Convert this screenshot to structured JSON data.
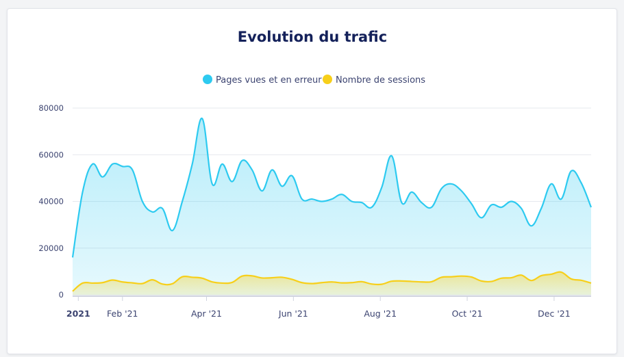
{
  "chart_data": {
    "type": "area",
    "title": "Evolution du trafic",
    "xlabel": "",
    "ylabel": "",
    "ylim": [
      0,
      80000
    ],
    "yticks": [
      "0",
      "20000",
      "40000",
      "60000",
      "80000"
    ],
    "xticks": [
      {
        "label": "2021",
        "date": "2021-01-01",
        "major": true
      },
      {
        "label": "Feb '21",
        "date": "2021-02-01",
        "major": false
      },
      {
        "label": "Apr '21",
        "date": "2021-04-01",
        "major": false
      },
      {
        "label": "Jun '21",
        "date": "2021-06-01",
        "major": false
      },
      {
        "label": "Aug '21",
        "date": "2021-08-01",
        "major": false
      },
      {
        "label": "Oct '21",
        "date": "2021-10-01",
        "major": false
      },
      {
        "label": "Dec '21",
        "date": "2021-12-01",
        "major": false
      }
    ],
    "x_range": [
      "2020-12-28",
      "2021-12-27"
    ],
    "grid": true,
    "legend_position": "top-center",
    "x": [
      "2020-12-28",
      "2021-01-04",
      "2021-01-11",
      "2021-01-18",
      "2021-01-25",
      "2021-02-01",
      "2021-02-08",
      "2021-02-15",
      "2021-02-22",
      "2021-03-01",
      "2021-03-08",
      "2021-03-15",
      "2021-03-22",
      "2021-03-29",
      "2021-04-05",
      "2021-04-12",
      "2021-04-19",
      "2021-04-26",
      "2021-05-03",
      "2021-05-10",
      "2021-05-17",
      "2021-05-24",
      "2021-05-31",
      "2021-06-07",
      "2021-06-14",
      "2021-06-21",
      "2021-06-28",
      "2021-07-05",
      "2021-07-12",
      "2021-07-19",
      "2021-07-26",
      "2021-08-02",
      "2021-08-09",
      "2021-08-16",
      "2021-08-23",
      "2021-08-30",
      "2021-09-06",
      "2021-09-13",
      "2021-09-20",
      "2021-09-27",
      "2021-10-04",
      "2021-10-11",
      "2021-10-18",
      "2021-10-25",
      "2021-11-01",
      "2021-11-08",
      "2021-11-15",
      "2021-11-22",
      "2021-11-29",
      "2021-12-06",
      "2021-12-13",
      "2021-12-20",
      "2021-12-27"
    ],
    "series": [
      {
        "name": "Pages vues et en erreur",
        "color": "#2dcaf0",
        "values": [
          16000,
          44000,
          56000,
          50500,
          56000,
          55000,
          53500,
          40000,
          35500,
          37000,
          27500,
          40000,
          56000,
          75500,
          47500,
          56000,
          48500,
          57500,
          53500,
          44500,
          53500,
          46500,
          51000,
          41000,
          41000,
          40000,
          41000,
          43000,
          40000,
          39500,
          37500,
          46000,
          59500,
          39500,
          44000,
          39500,
          37500,
          45500,
          47500,
          44500,
          39000,
          33000,
          38500,
          37500,
          40000,
          37000,
          29500,
          37000,
          47500,
          41000,
          53000,
          48000,
          37500
        ]
      },
      {
        "name": "Nombre de sessions",
        "color": "#f7cf1a",
        "values": [
          1500,
          5000,
          5000,
          5200,
          6300,
          5500,
          5100,
          4800,
          6400,
          4600,
          4700,
          7700,
          7500,
          7100,
          5500,
          5000,
          5300,
          8000,
          8100,
          7200,
          7300,
          7500,
          6600,
          5200,
          4800,
          5200,
          5500,
          5100,
          5200,
          5600,
          4600,
          4500,
          5800,
          5900,
          5700,
          5500,
          5600,
          7500,
          7700,
          8000,
          7600,
          5900,
          5700,
          7100,
          7300,
          8400,
          6100,
          8200,
          8800,
          9700,
          6800,
          6200,
          5000
        ]
      }
    ]
  }
}
